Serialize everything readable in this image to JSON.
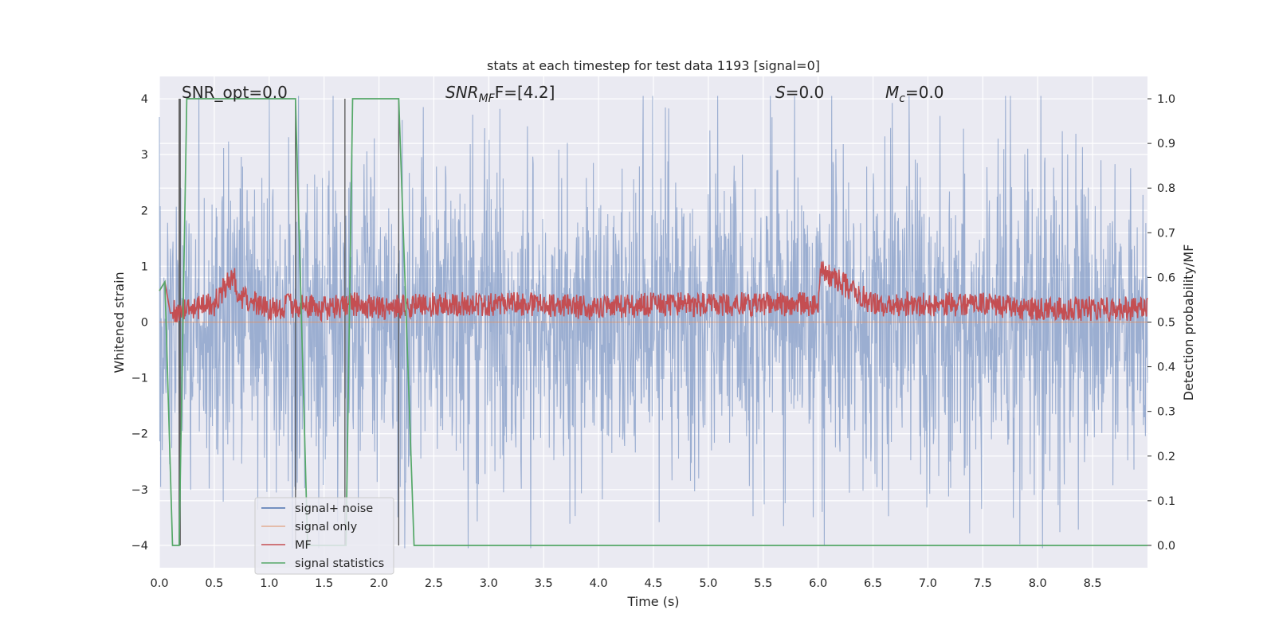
{
  "chart_data": {
    "type": "line",
    "title": "stats at each timestep for test data 1193 [signal=0]",
    "xlabel": "Time (s)",
    "ylabel": "Whitened strain",
    "y2label": "Detection probability/MF",
    "xlim": [
      0,
      9.0
    ],
    "ylim": [
      -4.4,
      4.4
    ],
    "y2lim": [
      -0.05,
      1.05
    ],
    "xticks": [
      0.0,
      0.5,
      1.0,
      1.5,
      2.0,
      2.5,
      3.0,
      3.5,
      4.0,
      4.5,
      5.0,
      5.5,
      6.0,
      6.5,
      7.0,
      7.5,
      8.0,
      8.5
    ],
    "xtick_labels": [
      "0.0",
      "0.5",
      "1.0",
      "1.5",
      "2.0",
      "2.5",
      "3.0",
      "3.5",
      "4.0",
      "4.5",
      "5.0",
      "5.5",
      "6.0",
      "6.5",
      "7.0",
      "7.5",
      "8.0",
      "8.5"
    ],
    "yticks": [
      4,
      3,
      2,
      1,
      0,
      -1,
      -2,
      -3,
      -4
    ],
    "ytick_labels": [
      "4",
      "3",
      "2",
      "1",
      "0",
      "−1",
      "−2",
      "−3",
      "−4"
    ],
    "y2ticks": [
      1.0,
      0.9,
      0.8,
      0.7,
      0.6,
      0.5,
      0.4,
      0.3,
      0.2,
      0.1,
      0.0
    ],
    "y2tick_labels": [
      "1.0",
      "0.9",
      "0.8",
      "0.7",
      "0.6",
      "0.5",
      "0.4",
      "0.3",
      "0.2",
      "0.1",
      "0.0"
    ],
    "grid": true,
    "legend_placement": "lower-left",
    "annotations": {
      "snr_opt": "SNR_opt=0.0",
      "snr_mf_main": "SNR",
      "snr_mf_sub": "MF",
      "snr_mf_tail": "F=[4.2]",
      "s_main": "S",
      "s_tail": "=0.0",
      "mc_main": "M",
      "mc_sub": "c",
      "mc_tail": "=0.0"
    },
    "series": [
      {
        "name": "signal+ noise",
        "color": "#4c72b0",
        "axis": "left",
        "note_values": "dense whitened noise, roughly within [-4, 4]"
      },
      {
        "name": "signal only",
        "color": "#dd8452",
        "axis": "left",
        "values_x": [
          0,
          9.0
        ],
        "values_y": [
          0,
          0
        ]
      },
      {
        "name": "MF",
        "color": "#c44e52",
        "axis": "right",
        "x": [
          0.0,
          0.05,
          0.1,
          0.3,
          0.5,
          0.68,
          0.7,
          1.0,
          1.3,
          1.5,
          1.8,
          2.0,
          2.5,
          3.0,
          3.5,
          4.0,
          4.5,
          5.0,
          5.5,
          6.0,
          6.02,
          6.5,
          7.0,
          7.5,
          8.0,
          8.5,
          9.0
        ],
        "y": [
          0.57,
          0.59,
          0.52,
          0.53,
          0.54,
          0.61,
          0.56,
          0.53,
          0.54,
          0.53,
          0.54,
          0.53,
          0.54,
          0.54,
          0.54,
          0.53,
          0.54,
          0.54,
          0.54,
          0.54,
          0.62,
          0.54,
          0.54,
          0.54,
          0.53,
          0.53,
          0.53
        ]
      },
      {
        "name": "signal statistics",
        "color": "#55a868",
        "axis": "right",
        "x": [
          0.0,
          0.05,
          0.12,
          0.18,
          0.25,
          1.24,
          1.35,
          1.7,
          1.76,
          2.18,
          2.32,
          9.0
        ],
        "y": [
          0.57,
          0.59,
          0.0,
          0.0,
          1.0,
          1.0,
          0.0,
          0.0,
          1.0,
          1.0,
          0.0,
          0.0
        ]
      }
    ],
    "vertical_markers_x": [
      0.18,
      0.19,
      1.24,
      1.69,
      2.18
    ]
  }
}
